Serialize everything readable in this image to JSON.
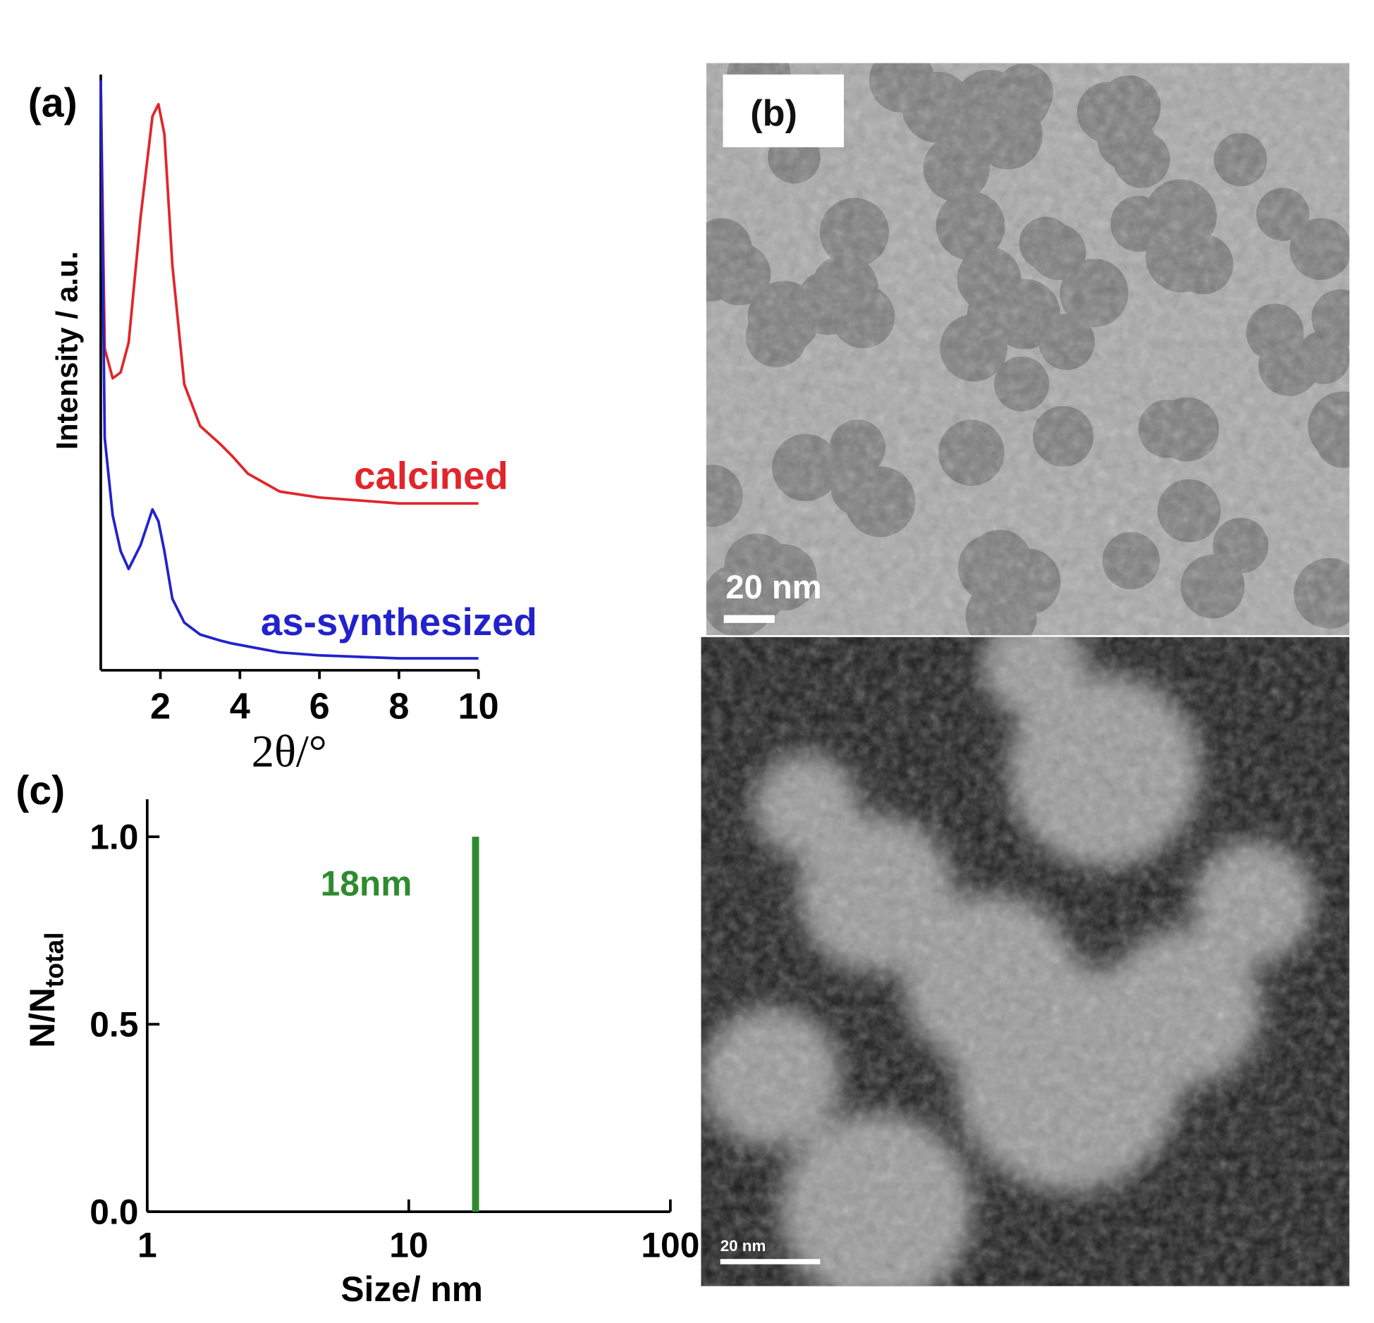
{
  "chart_data": [
    {
      "type": "line",
      "panel_label": "(a)",
      "xlabel": "2θ/°",
      "ylabel": "Intensity / a.u.",
      "x": [
        0.5,
        0.6,
        0.8,
        1.0,
        1.2,
        1.5,
        1.8,
        1.95,
        2.1,
        2.3,
        2.6,
        3.0,
        3.5,
        3.8,
        4.2,
        5,
        6,
        8,
        10
      ],
      "series": [
        {
          "name": "calcined",
          "color": "#e0262c",
          "values": [
            99,
            54,
            49,
            50,
            55,
            76,
            93,
            95,
            90,
            68,
            48,
            41,
            38,
            36,
            33,
            30,
            29,
            28,
            28
          ]
        },
        {
          "name": "as-synthesized",
          "color": "#2222cc",
          "values": [
            99,
            39,
            26,
            20,
            17,
            21,
            27,
            25,
            20,
            12,
            8,
            6,
            5,
            4.5,
            4,
            3,
            2.5,
            2,
            2
          ]
        }
      ],
      "xlim": [
        0.5,
        10
      ],
      "xticks": [
        2,
        4,
        6,
        8,
        10
      ],
      "ylim": [
        0,
        100
      ]
    },
    {
      "type": "bar",
      "panel_label": "(c)",
      "xlabel": "Size/ nm",
      "ylabel": "N/N",
      "ylabel_sub": "total",
      "x": [
        18
      ],
      "values": [
        1.0
      ],
      "color": "#2e8b2e",
      "annotation": "18nm",
      "log_x": true,
      "xlim": [
        1,
        100
      ],
      "xticks": [
        1,
        10,
        100
      ],
      "ylim": [
        0,
        1.1
      ],
      "yticks": [
        {
          "value": 0,
          "label": "0.0"
        },
        {
          "value": 0.5,
          "label": "0.5"
        },
        {
          "value": 1,
          "label": "1.0"
        }
      ]
    }
  ],
  "images": [
    {
      "panel_label": "(b)",
      "scale_bar": "20 nm"
    },
    {
      "scale_bar": "20 nm"
    }
  ]
}
